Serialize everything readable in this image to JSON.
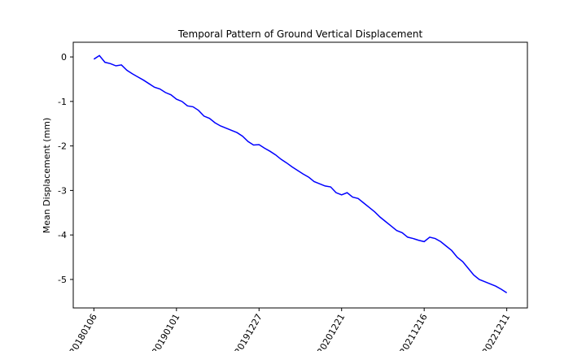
{
  "chart_data": {
    "type": "line",
    "title": "Temporal Pattern of Ground Vertical Displacement",
    "y_label": "Mean Displacement (mm)",
    "x": [
      "20180106",
      "20180130",
      "20180223",
      "20180319",
      "20180412",
      "20180506",
      "20180530",
      "20180623",
      "20180717",
      "20180810",
      "20180903",
      "20180927",
      "20181021",
      "20181114",
      "20181208",
      "20190101",
      "20190125",
      "20190218",
      "20190314",
      "20190407",
      "20190501",
      "20190525",
      "20190618",
      "20190712",
      "20190805",
      "20190829",
      "20190922",
      "20191016",
      "20191109",
      "20191203",
      "20191227",
      "20200120",
      "20200213",
      "20200308",
      "20200401",
      "20200425",
      "20200519",
      "20200612",
      "20200706",
      "20200730",
      "20200823",
      "20200916",
      "20201010",
      "20201103",
      "20201127",
      "20201221",
      "20210114",
      "20210207",
      "20210303",
      "20210327",
      "20210420",
      "20210514",
      "20210607",
      "20210701",
      "20210725",
      "20210818",
      "20210911",
      "20211005",
      "20211029",
      "20211122",
      "20211216",
      "20220109",
      "20220202",
      "20220226",
      "20220322",
      "20220415",
      "20220509",
      "20220602",
      "20220626",
      "20220720",
      "20220813",
      "20220906",
      "20220930",
      "20221024",
      "20221117",
      "20221211"
    ],
    "series": [
      {
        "name": "Mean Displacement",
        "color": "#0000ff",
        "values": [
          -0.05,
          0.03,
          -0.12,
          -0.15,
          -0.2,
          -0.18,
          -0.3,
          -0.38,
          -0.45,
          -0.52,
          -0.6,
          -0.68,
          -0.72,
          -0.8,
          -0.85,
          -0.95,
          -1.0,
          -1.1,
          -1.12,
          -1.2,
          -1.33,
          -1.38,
          -1.48,
          -1.55,
          -1.6,
          -1.65,
          -1.7,
          -1.78,
          -1.9,
          -1.98,
          -1.97,
          -2.05,
          -2.12,
          -2.2,
          -2.3,
          -2.38,
          -2.47,
          -2.55,
          -2.63,
          -2.7,
          -2.8,
          -2.85,
          -2.9,
          -2.92,
          -3.05,
          -3.1,
          -3.05,
          -3.15,
          -3.18,
          -3.28,
          -3.38,
          -3.48,
          -3.6,
          -3.7,
          -3.8,
          -3.9,
          -3.95,
          -4.05,
          -4.08,
          -4.12,
          -4.15,
          -4.05,
          -4.08,
          -4.15,
          -4.25,
          -4.35,
          -4.5,
          -4.6,
          -4.75,
          -4.9,
          -5.0,
          -5.05,
          -5.1,
          -5.15,
          -5.22,
          -5.3
        ]
      }
    ],
    "xticks": [
      "20180106",
      "20190101",
      "20191227",
      "20201221",
      "20211216",
      "20221211"
    ],
    "ylim": [
      -5.64,
      0.33
    ],
    "yticks": [
      0,
      -1,
      -2,
      -3,
      -4,
      -5
    ],
    "grid": false
  }
}
